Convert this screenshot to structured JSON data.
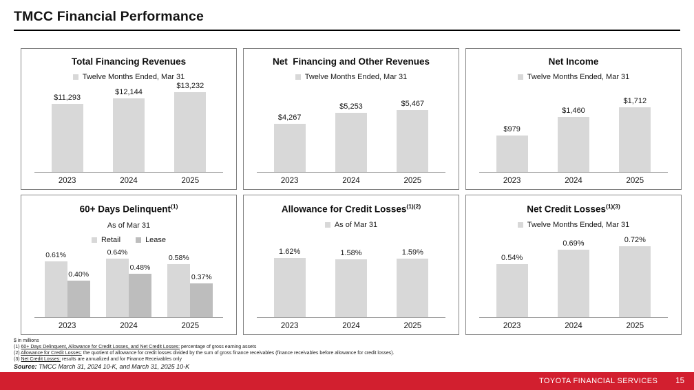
{
  "page": {
    "title": "TMCC Financial Performance",
    "footer": {
      "brand": "TOYOTA FINANCIAL SERVICES",
      "page_number": "15",
      "bar_color": "#d21f2f"
    }
  },
  "colors": {
    "bar_light": "#d8d8d8",
    "bar_dark": "#bdbdbd",
    "panel_border": "#828282",
    "axis_line": "#9b9b9b"
  },
  "chart_data": [
    {
      "type": "bar",
      "title": "Total Financing Revenues",
      "title_superscript": "",
      "subtitle": "",
      "legend": [
        {
          "label": "Twelve Months Ended, Mar 31",
          "color": "#d8d8d8"
        }
      ],
      "legend_position": "top",
      "grid": false,
      "unit": "$ in millions",
      "categories": [
        "2023",
        "2024",
        "2025"
      ],
      "series": [
        {
          "name": "Twelve Months Ended, Mar 31",
          "color": "#d8d8d8",
          "values": [
            11293,
            12144,
            13232
          ],
          "labels": [
            "$11,293",
            "$12,144",
            "$13,232"
          ]
        }
      ],
      "ylim": [
        0,
        15000
      ]
    },
    {
      "type": "bar",
      "title": "Net  Financing and Other Revenues",
      "title_superscript": "",
      "subtitle": "",
      "legend": [
        {
          "label": "Twelve Months Ended, Mar 31",
          "color": "#d8d8d8"
        }
      ],
      "legend_position": "top",
      "grid": false,
      "unit": "$ in millions",
      "categories": [
        "2023",
        "2024",
        "2025"
      ],
      "series": [
        {
          "name": "Twelve Months Ended, Mar 31",
          "color": "#d8d8d8",
          "values": [
            4267,
            5253,
            5467
          ],
          "labels": [
            "$4,267",
            "$5,253",
            "$5,467"
          ]
        }
      ],
      "ylim": [
        0,
        8000
      ]
    },
    {
      "type": "bar",
      "title": "Net Income",
      "title_superscript": "",
      "subtitle": "",
      "legend": [
        {
          "label": "Twelve Months Ended, Mar 31",
          "color": "#d8d8d8"
        }
      ],
      "legend_position": "top",
      "grid": false,
      "unit": "$ in millions",
      "categories": [
        "2023",
        "2024",
        "2025"
      ],
      "series": [
        {
          "name": "Twelve Months Ended, Mar 31",
          "color": "#d8d8d8",
          "values": [
            979,
            1460,
            1712
          ],
          "labels": [
            "$979",
            "$1,460",
            "$1,712"
          ]
        }
      ],
      "ylim": [
        0,
        2400
      ]
    },
    {
      "type": "bar",
      "title": "60+ Days Delinquent",
      "title_superscript": "(1)",
      "subtitle": "As of Mar 31",
      "legend": [
        {
          "label": "Retail",
          "color": "#d8d8d8"
        },
        {
          "label": "Lease",
          "color": "#bdbdbd"
        }
      ],
      "legend_position": "top",
      "grid": false,
      "unit": "% of gross earning assets",
      "categories": [
        "2023",
        "2024",
        "2025"
      ],
      "series": [
        {
          "name": "Retail",
          "color": "#d8d8d8",
          "values": [
            0.61,
            0.64,
            0.58
          ],
          "labels": [
            "0.61%",
            "0.64%",
            "0.58%"
          ]
        },
        {
          "name": "Lease",
          "color": "#bdbdbd",
          "values": [
            0.4,
            0.48,
            0.37
          ],
          "labels": [
            "0.40%",
            "0.48%",
            "0.37%"
          ]
        }
      ],
      "ylim": [
        0,
        0.8
      ]
    },
    {
      "type": "bar",
      "title": "Allowance for Credit Losses",
      "title_superscript": "(1)(2)",
      "subtitle": "",
      "legend": [
        {
          "label": "As of Mar 31",
          "color": "#d8d8d8"
        }
      ],
      "legend_position": "top",
      "grid": false,
      "unit": "% of gross earning assets",
      "categories": [
        "2023",
        "2024",
        "2025"
      ],
      "series": [
        {
          "name": "As of Mar 31",
          "color": "#d8d8d8",
          "values": [
            1.62,
            1.58,
            1.59
          ],
          "labels": [
            "1.62%",
            "1.58%",
            "1.59%"
          ]
        }
      ],
      "ylim": [
        0,
        2.4
      ]
    },
    {
      "type": "bar",
      "title": "Net Credit Losses",
      "title_superscript": "(1)(3)",
      "subtitle": "",
      "legend": [
        {
          "label": "Twelve Months Ended, Mar 31",
          "color": "#d8d8d8"
        }
      ],
      "legend_position": "top",
      "grid": false,
      "unit": "% of gross earning assets",
      "categories": [
        "2023",
        "2024",
        "2025"
      ],
      "series": [
        {
          "name": "Twelve Months Ended, Mar 31",
          "color": "#d8d8d8",
          "values": [
            0.54,
            0.69,
            0.72
          ],
          "labels": [
            "0.54%",
            "0.69%",
            "0.72%"
          ]
        }
      ],
      "ylim": [
        0,
        0.9
      ]
    }
  ],
  "footnotes": {
    "lines": [
      [
        {
          "text": "$ in millions"
        }
      ],
      [
        {
          "text": "(1) "
        },
        {
          "text": "60+ Days Delinquent, Allowance for Credit Losses, and Net Credit Losses:",
          "underline": true
        },
        {
          "text": " percentage of gross earning assets"
        }
      ],
      [
        {
          "text": "(2) "
        },
        {
          "text": "Allowance for Credit Losses:",
          "underline": true
        },
        {
          "text": " the quotient of allowance for credit losses divided by the sum of gross finance receivables (finance receivables before allowance for credit losses)."
        }
      ],
      [
        {
          "text": "(3) "
        },
        {
          "text": "Net Credit Losses:",
          "underline": true
        },
        {
          "text": " results are annualized and for Finance Receivables only"
        }
      ]
    ],
    "source": {
      "label": "Source:",
      "text": " TMCC March 31, 2024 10-K, and March 31, 2025 10-K"
    }
  }
}
